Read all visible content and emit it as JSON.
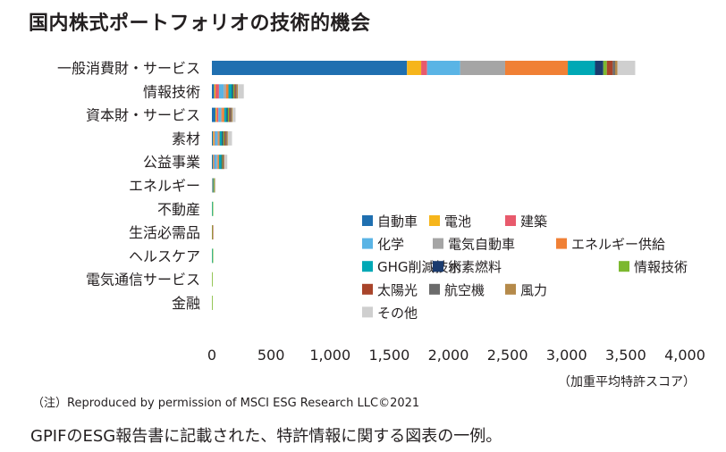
{
  "title": "国内株式ポートフォリオの技術的機会",
  "note": "（注）Reproduced by permission of MSCI ESG Research LLC©2021",
  "caption": "GPIFのESG報告書に記載された、特許情報に関する図表の一例。",
  "chart_data": {
    "type": "bar",
    "orientation": "horizontal",
    "stacked": true,
    "xlabel": "（加重平均特許スコア）",
    "xlim": [
      0,
      4000
    ],
    "xticks": [
      0,
      500,
      1000,
      1500,
      2000,
      2500,
      3000,
      3500,
      4000
    ],
    "xtick_labels": [
      "0",
      "500",
      "1,000",
      "1,500",
      "2,000",
      "2,500",
      "3,000",
      "3,500",
      "4,000"
    ],
    "grid": false,
    "legend_position": "lower-right",
    "categories": [
      "一般消費財・サービス",
      "情報技術",
      "資本財・サービス",
      "素材",
      "公益事業",
      "エネルギー",
      "不動産",
      "生活必需品",
      "ヘルスケア",
      "電気通信サービス",
      "金融"
    ],
    "series": [
      {
        "name": "自動車",
        "color": "#1f6fb0",
        "values": [
          1650,
          20,
          30,
          10,
          10,
          0,
          0,
          0,
          0,
          0,
          0
        ]
      },
      {
        "name": "電池",
        "color": "#f6b51b",
        "values": [
          120,
          10,
          10,
          10,
          5,
          0,
          0,
          0,
          0,
          0,
          0
        ]
      },
      {
        "name": "建築",
        "color": "#e85a6c",
        "values": [
          50,
          30,
          15,
          5,
          5,
          0,
          0,
          0,
          0,
          0,
          0
        ]
      },
      {
        "name": "化学",
        "color": "#5ab4e5",
        "values": [
          280,
          40,
          20,
          20,
          20,
          5,
          0,
          0,
          0,
          0,
          0
        ]
      },
      {
        "name": "電気自動車",
        "color": "#a5a5a5",
        "values": [
          380,
          20,
          10,
          10,
          10,
          0,
          0,
          0,
          0,
          0,
          0
        ]
      },
      {
        "name": "エネルギー供給",
        "color": "#f08035",
        "values": [
          530,
          20,
          20,
          10,
          10,
          5,
          0,
          0,
          0,
          0,
          0
        ]
      },
      {
        "name": "GHG削減技術",
        "color": "#00a8b5",
        "values": [
          230,
          30,
          20,
          20,
          20,
          5,
          5,
          0,
          5,
          0,
          0
        ]
      },
      {
        "name": "水素燃料",
        "color": "#1b3b6e",
        "values": [
          70,
          10,
          10,
          10,
          5,
          0,
          0,
          0,
          0,
          0,
          0
        ]
      },
      {
        "name": "情報技術",
        "color": "#7cb82f",
        "values": [
          30,
          10,
          10,
          10,
          5,
          5,
          5,
          5,
          5,
          5,
          5
        ]
      },
      {
        "name": "太陽光",
        "color": "#a8442a",
        "values": [
          50,
          10,
          10,
          10,
          5,
          0,
          0,
          5,
          0,
          0,
          0
        ]
      },
      {
        "name": "航空機",
        "color": "#6b6b6b",
        "values": [
          20,
          10,
          10,
          10,
          5,
          0,
          0,
          0,
          0,
          0,
          0
        ]
      },
      {
        "name": "風力",
        "color": "#b58a4a",
        "values": [
          20,
          10,
          10,
          10,
          5,
          5,
          0,
          0,
          0,
          0,
          0
        ]
      },
      {
        "name": "その他",
        "color": "#cfcfcf",
        "values": [
          150,
          50,
          25,
          35,
          25,
          5,
          0,
          0,
          0,
          0,
          0
        ]
      }
    ]
  }
}
